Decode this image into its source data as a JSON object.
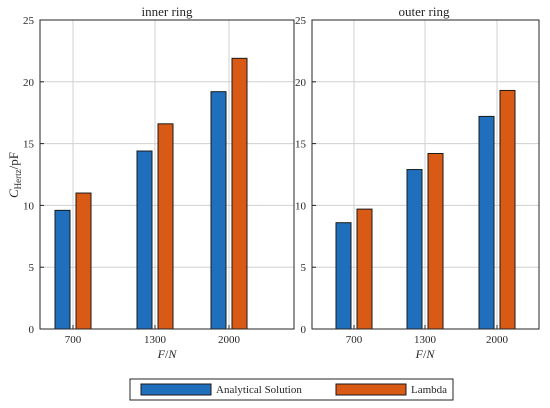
{
  "chart_data": [
    {
      "type": "bar",
      "title": "inner ring",
      "ylabel_main": "C",
      "ylabel_sub": "Hertz",
      "ylabel_unit": "/pF",
      "xlabel_main": "F",
      "xlabel_unit": "/N",
      "categories": [
        "700",
        "1300",
        "2000"
      ],
      "series": [
        {
          "name": "Analytical Solution",
          "values": [
            9.6,
            14.4,
            19.2
          ]
        },
        {
          "name": "Lambda",
          "values": [
            11.0,
            16.6,
            21.9
          ]
        }
      ],
      "ylim": [
        0,
        25
      ],
      "yticks": [
        "0",
        "5",
        "10",
        "15",
        "20",
        "25"
      ],
      "grid": true
    },
    {
      "type": "bar",
      "title": "outer ring",
      "xlabel_main": "F",
      "xlabel_unit": "/N",
      "categories": [
        "700",
        "1300",
        "2000"
      ],
      "series": [
        {
          "name": "Analytical Solution",
          "values": [
            8.6,
            12.9,
            17.2
          ]
        },
        {
          "name": "Lambda",
          "values": [
            9.7,
            14.2,
            19.3
          ]
        }
      ],
      "ylim": [
        0,
        25
      ],
      "yticks": [
        "0",
        "5",
        "10",
        "15",
        "20",
        "25"
      ],
      "grid": true
    }
  ],
  "legend": {
    "position": "bottom-center",
    "entries": [
      "Analytical Solution",
      "Lambda"
    ]
  },
  "colors": {
    "series": [
      "#1f6fbd",
      "#d95a14"
    ],
    "grid": "#d0d0d0",
    "axis": "#262626",
    "bar_edge": "#1a1a1a"
  }
}
